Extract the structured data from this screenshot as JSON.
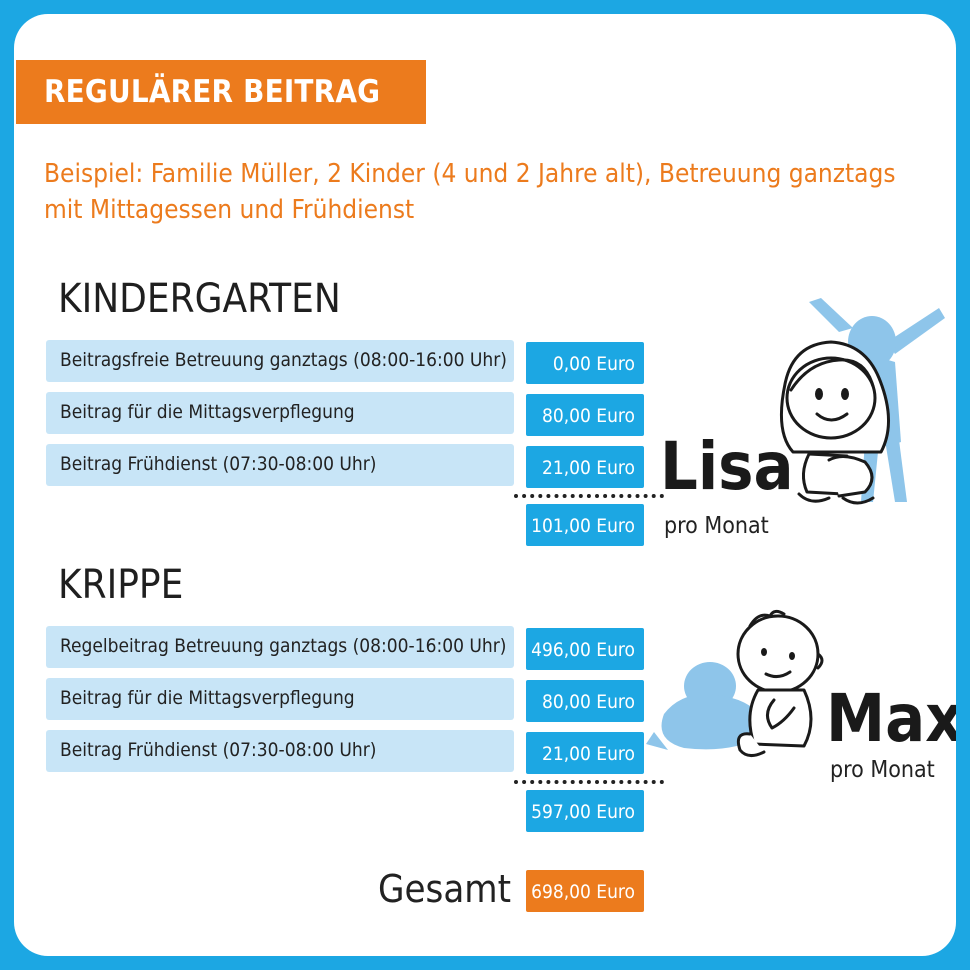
{
  "banner": {
    "title": "REGULÄRER BEITRAG"
  },
  "subtitle": {
    "line1": "Beispiel: Familie Müller, 2 Kinder (4 und 2 Jahre alt), Betreuung ganztags",
    "line2": "mit Mittagessen und Frühdienst"
  },
  "kindergarten": {
    "title": "KINDERGARTEN",
    "rows": [
      {
        "label": "Beitragsfreie Betreuung ganztags (08:00-16:00 Uhr)",
        "amount": "0,00 Euro"
      },
      {
        "label": "Beitrag für die Mittagsverpflegung",
        "amount": "80,00 Euro"
      },
      {
        "label": "Beitrag Frühdienst (07:30-08:00 Uhr)",
        "amount": "21,00 Euro"
      }
    ],
    "total": "101,00 Euro",
    "child_name": "Lisa",
    "per_month": "pro Monat"
  },
  "krippe": {
    "title": "KRIPPE",
    "rows": [
      {
        "label": "Regelbeitrag Betreuung ganztags (08:00-16:00 Uhr)",
        "amount": "496,00 Euro"
      },
      {
        "label": "Beitrag für die Mittagsverpflegung",
        "amount": "80,00 Euro"
      },
      {
        "label": "Beitrag Frühdienst (07:30-08:00 Uhr)",
        "amount": "21,00 Euro"
      }
    ],
    "total": "597,00 Euro",
    "child_name": "Max",
    "per_month": "pro Monat"
  },
  "summary": {
    "label": "Gesamt",
    "amount": "698,00 Euro"
  },
  "colors": {
    "accent_orange": "#ec7b1d",
    "accent_blue": "#1ca7e3",
    "row_light_blue": "#c8e5f7",
    "figure_blue": "#8ec5ea"
  },
  "illustrations": [
    "girl-illustration",
    "baby-illustration"
  ]
}
